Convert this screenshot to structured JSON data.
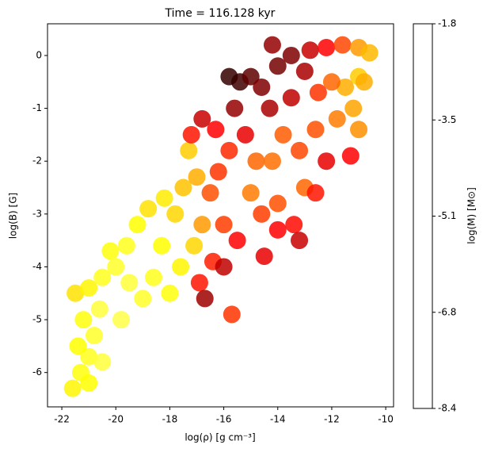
{
  "chart_data": {
    "type": "scatter",
    "title": "Time = 116.128 kyr",
    "x_label": "log(ρ) [g cm⁻³]",
    "y_label": "log(B) [G]",
    "colorbar_label": "log(M) [M⊙]",
    "colormap": "hot",
    "xlim": [
      -22.53,
      -9.71
    ],
    "ylim": [
      -6.65,
      0.6
    ],
    "xticks": [
      -22,
      -20,
      -18,
      -16,
      -14,
      -12,
      -10
    ],
    "yticks": [
      -6,
      -5,
      -4,
      -3,
      -2,
      -1,
      0
    ],
    "clim": [
      -8.4,
      -1.8
    ],
    "cticks": [
      -1.8,
      {
        "value": -3.45,
        "label": "-3.5"
      },
      -5.1,
      {
        "value": -6.75,
        "label": "-6.8"
      },
      -8.4
    ],
    "x": [
      -21.6,
      -21.3,
      -21.0,
      -21.4,
      -20.8,
      -21.2,
      -20.6,
      -21.5,
      -21.0,
      -20.5,
      -20.0,
      -20.2,
      -19.6,
      -19.2,
      -19.8,
      -20.5,
      -21.0,
      -19.0,
      -18.6,
      -18.3,
      -18.8,
      -18.2,
      -17.8,
      -17.5,
      -17.6,
      -17.1,
      -17.0,
      -17.3,
      -16.8,
      -16.5,
      -16.9,
      -16.4,
      -16.0,
      -16.2,
      -15.8,
      -16.3,
      -15.6,
      -15.4,
      -15.0,
      -14.6,
      -14.3,
      -15.2,
      -14.8,
      -15.0,
      -14.6,
      -15.5,
      -14.5,
      -14.0,
      -14.2,
      -13.8,
      -13.5,
      -14.0,
      -13.5,
      -12.8,
      -12.2,
      -11.6,
      -11.0,
      -10.6,
      -11.0,
      -11.5,
      -12.0,
      -12.5,
      -11.2,
      -11.0,
      -11.8,
      -12.6,
      -13.2,
      -12.2,
      -11.3,
      -13.0,
      -12.6,
      -13.4,
      -13.2,
      -14.0,
      -16.0,
      -16.7,
      -15.7,
      -18.0,
      -19.5,
      -17.2,
      -16.8,
      -15.8,
      -14.2,
      -13.0,
      -10.8
    ],
    "values": [
      -6.3,
      -6.0,
      -5.7,
      -5.5,
      -5.3,
      -5.0,
      -4.8,
      -4.5,
      -4.4,
      -4.2,
      -4.0,
      -3.7,
      -3.6,
      -3.2,
      -5.0,
      -5.8,
      -6.2,
      -4.6,
      -4.2,
      -3.6,
      -2.9,
      -2.7,
      -3.0,
      -2.5,
      -4.0,
      -3.6,
      -2.3,
      -1.8,
      -3.2,
      -2.6,
      -4.3,
      -3.9,
      -3.2,
      -2.2,
      -1.8,
      -1.4,
      -1.0,
      -0.5,
      -0.4,
      -0.6,
      -1.0,
      -1.5,
      -2.0,
      -2.6,
      -3.0,
      -3.5,
      -3.8,
      -2.8,
      -2.0,
      -1.5,
      -0.8,
      -0.2,
      0.0,
      0.1,
      0.15,
      0.2,
      0.15,
      0.05,
      -0.4,
      -0.6,
      -0.5,
      -0.7,
      -1.0,
      -1.4,
      -1.2,
      -1.4,
      -1.8,
      -2.0,
      -1.9,
      -2.5,
      -2.6,
      -3.2,
      -3.5,
      -3.3,
      -4.0,
      -4.6,
      -4.9,
      -4.5,
      -4.3,
      -1.5,
      -1.2,
      -0.4,
      0.2,
      -0.3,
      -0.5
    ],
    "c": [
      -3.6,
      -3.4,
      -3.3,
      -3.5,
      -3.2,
      -3.4,
      -3.1,
      -3.8,
      -3.6,
      -3.3,
      -3.2,
      -3.4,
      -3.3,
      -3.5,
      -3.0,
      -3.1,
      -3.5,
      -3.2,
      -3.3,
      -3.5,
      -3.8,
      -3.7,
      -3.9,
      -4.1,
      -3.6,
      -3.9,
      -4.3,
      -4.0,
      -4.5,
      -5.2,
      -5.8,
      -5.7,
      -5.4,
      -5.5,
      -5.6,
      -6.0,
      -7.0,
      -7.8,
      -7.5,
      -7.2,
      -6.8,
      -6.2,
      -5.0,
      -4.8,
      -5.4,
      -6.0,
      -6.2,
      -5.2,
      -4.9,
      -5.1,
      -6.6,
      -7.3,
      -7.2,
      -6.5,
      -6.0,
      -5.3,
      -4.5,
      -4.2,
      -4.0,
      -4.3,
      -5.0,
      -5.5,
      -4.4,
      -4.6,
      -4.8,
      -5.2,
      -5.3,
      -6.2,
      -6.0,
      -5.0,
      -5.8,
      -5.9,
      -6.5,
      -6.0,
      -6.6,
      -6.9,
      -5.5,
      -3.4,
      -3.1,
      -5.8,
      -6.5,
      -7.9,
      -7.0,
      -6.8,
      -4.3
    ]
  }
}
